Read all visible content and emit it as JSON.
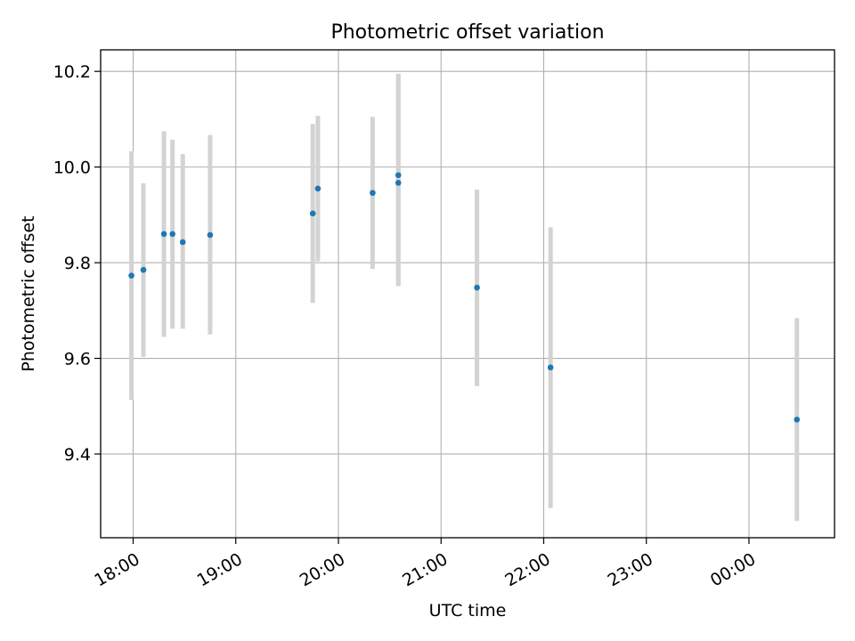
{
  "chart_data": {
    "type": "scatter",
    "title": "Photometric offset variation",
    "xlabel": "UTC time",
    "ylabel": "Photometric offset",
    "x_ticks": [
      "18:00",
      "19:00",
      "20:00",
      "21:00",
      "22:00",
      "23:00",
      "00:00"
    ],
    "y_ticks": [
      "9.4",
      "9.6",
      "9.8",
      "10.0",
      "10.2"
    ],
    "x_tick_values": [
      "18:00",
      "19:00",
      "20:00",
      "21:00",
      "22:00",
      "23:00",
      "00:00"
    ],
    "y_tick_values": [
      9.4,
      9.6,
      9.8,
      10.0,
      10.2
    ],
    "xlim": [
      "17:41",
      "00:50"
    ],
    "ylim": [
      9.225,
      10.245
    ],
    "grid": true,
    "legend": "none",
    "point_color": "#1f77b4",
    "errorbar_color": "#d3d3d3",
    "series": [
      {
        "x": [
          "17:59",
          "18:06",
          "18:18",
          "18:23",
          "18:29",
          "18:45",
          "19:45",
          "19:48",
          "20:20",
          "20:35",
          "20:35",
          "21:21",
          "22:04",
          "00:28"
        ],
        "y": [
          9.773,
          9.785,
          9.86,
          9.86,
          9.843,
          9.858,
          9.903,
          9.955,
          9.946,
          9.983,
          9.967,
          9.748,
          9.581,
          9.472
        ],
        "yerr_low": [
          9.513,
          9.603,
          9.645,
          9.662,
          9.662,
          9.65,
          9.716,
          9.803,
          9.787,
          9.751,
          9.751,
          9.542,
          9.287,
          9.26
        ],
        "yerr_high": [
          10.033,
          9.966,
          10.075,
          10.057,
          10.027,
          10.067,
          10.09,
          10.107,
          10.105,
          10.195,
          10.195,
          9.953,
          9.874,
          9.684
        ]
      }
    ]
  }
}
